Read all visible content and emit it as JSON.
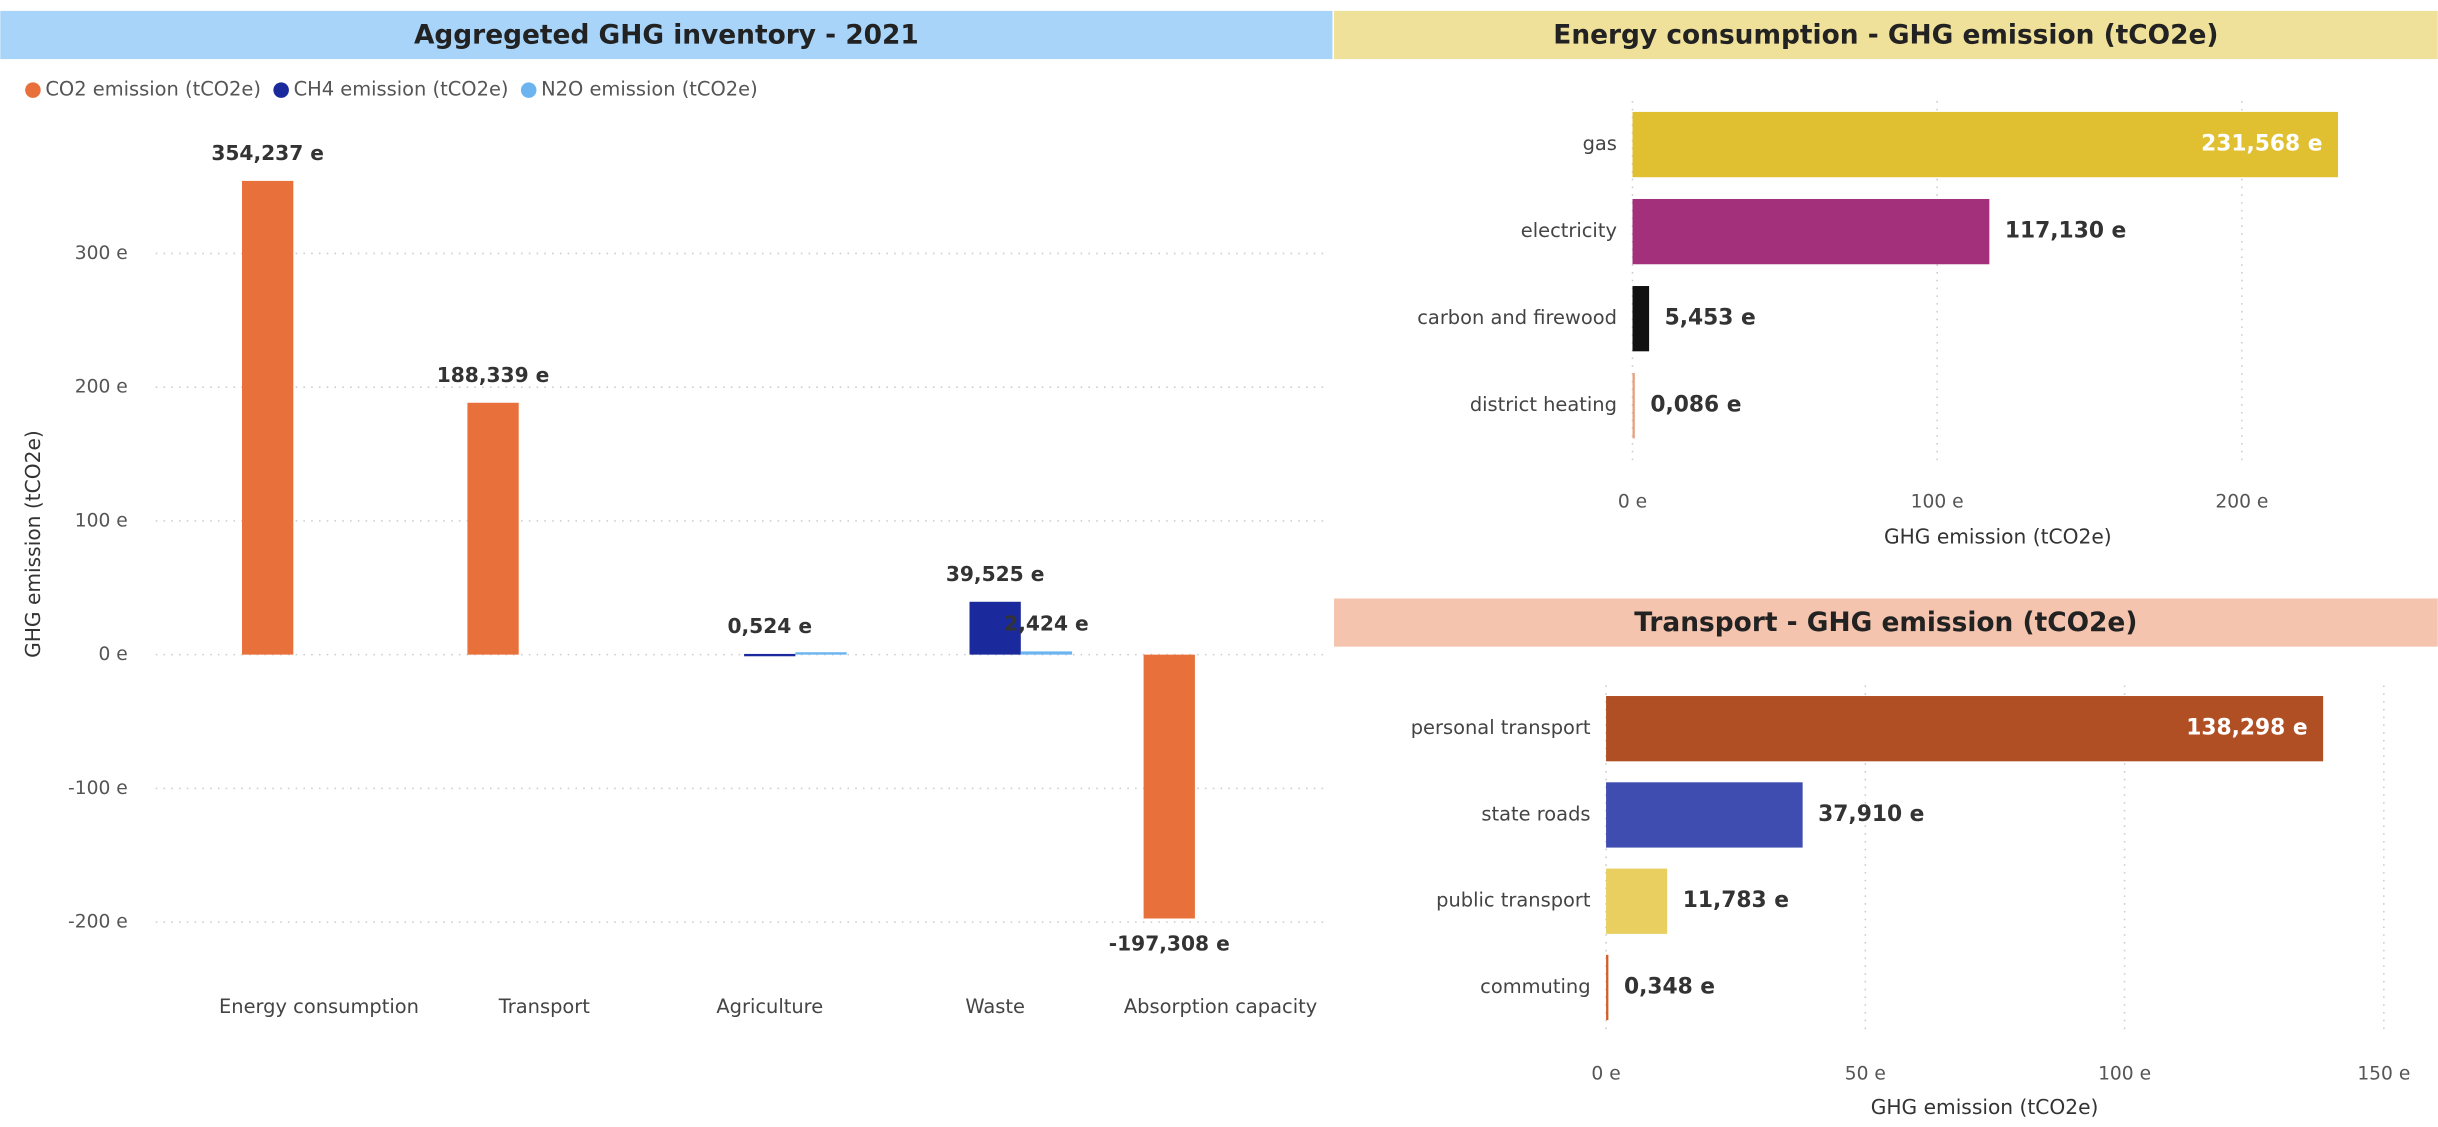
{
  "chart_data": [
    {
      "type": "bar",
      "title": "Aggregeted GHG inventory - 2021",
      "y_label": "GHG emission (tCO2e)",
      "categories": [
        "Energy consumption",
        "Transport",
        "Agriculture",
        "Waste",
        "Absorption capacity"
      ],
      "series": [
        {
          "name": "CO2 emission (tCO2e)",
          "color": "#e8703a",
          "values": [
            354.237,
            188.339,
            null,
            null,
            -197.308
          ],
          "value_labels": [
            "354,237 e",
            "188,339 e",
            null,
            null,
            "-197,308 e"
          ]
        },
        {
          "name": "CH4 emission (tCO2e)",
          "color": "#1a2a9c",
          "values": [
            null,
            null,
            0.524,
            39.525,
            null
          ],
          "value_labels": [
            null,
            null,
            "0,524 e",
            "39,525 e",
            null
          ]
        },
        {
          "name": "N2O emission (tCO2e)",
          "color": "#6cb4f0",
          "values": [
            null,
            null,
            1.8,
            2.424,
            null
          ],
          "value_labels": [
            null,
            null,
            null,
            "2,424 e",
            null
          ]
        }
      ],
      "ylim": [
        -230,
        400
      ],
      "yticks": [
        {
          "value": -200,
          "label": "-200 e"
        },
        {
          "value": -100,
          "label": "-100 e"
        },
        {
          "value": 0,
          "label": "0 e"
        },
        {
          "value": 100,
          "label": "100 e"
        },
        {
          "value": 200,
          "label": "200 e"
        },
        {
          "value": 300,
          "label": "300 e"
        }
      ],
      "grid": true,
      "legend": "top-left",
      "title_color": "#a8d4fa"
    },
    {
      "type": "hbar",
      "title": "Energy consumption - GHG emission (tCO2e)",
      "x_label": "GHG emission (tCO2e)",
      "categories": [
        "gas",
        "electricity",
        "carbon and firewood",
        "district heating"
      ],
      "values": [
        231.568,
        117.13,
        5.453,
        0.086
      ],
      "value_labels": [
        "231,568 e",
        "117,130 e",
        "5,453 e",
        "0,086 e"
      ],
      "colors": [
        "#e0c030",
        "#a3307a",
        "#111111",
        "#e8a080"
      ],
      "xlim": [
        0,
        250
      ],
      "xticks": [
        {
          "value": 0,
          "label": "0 e"
        },
        {
          "value": 100,
          "label": "100 e"
        },
        {
          "value": 200,
          "label": "200 e"
        }
      ],
      "grid": true,
      "title_color": "#efe09a"
    },
    {
      "type": "hbar",
      "title": "Transport - GHG emission (tCO2e)",
      "x_label": "GHG emission (tCO2e)",
      "categories": [
        "personal transport",
        "state roads",
        "public transport",
        "commuting"
      ],
      "values": [
        138.298,
        37.91,
        11.783,
        0.348
      ],
      "value_labels": [
        "138,298 e",
        "37,910 e",
        "11,783 e",
        "0,348 e"
      ],
      "colors": [
        "#b04e24",
        "#3f4db0",
        "#e8cf60",
        "#d0602a"
      ],
      "xlim": [
        0,
        152
      ],
      "xticks": [
        {
          "value": 0,
          "label": "0 e"
        },
        {
          "value": 50,
          "label": "50 e"
        },
        {
          "value": 100,
          "label": "100 e"
        },
        {
          "value": 150,
          "label": "150 e"
        }
      ],
      "grid": true,
      "title_color": "#f5c4ae"
    }
  ]
}
